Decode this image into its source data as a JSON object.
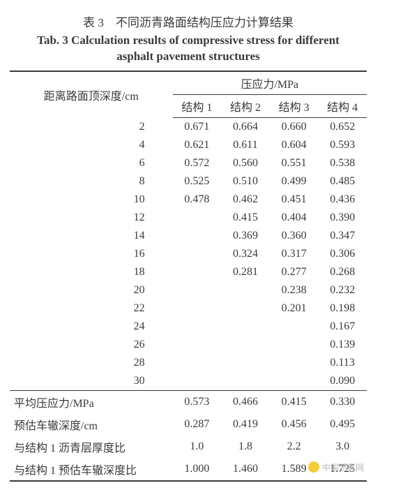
{
  "caption": {
    "cn": "表 3　不同沥青路面结构压应力计算结果",
    "en_line1": "Tab. 3 Calculation results of compressive stress for different",
    "en_line2": "asphalt pavement structures"
  },
  "headers": {
    "depth": "距离路面顶深度/cm",
    "stress_group": "压应力/MPa",
    "s1": "结构 1",
    "s2": "结构 2",
    "s3": "结构 3",
    "s4": "结构 4"
  },
  "rows": [
    {
      "depth": "2",
      "s1": "0.671",
      "s2": "0.664",
      "s3": "0.660",
      "s4": "0.652"
    },
    {
      "depth": "4",
      "s1": "0.621",
      "s2": "0.611",
      "s3": "0.604",
      "s4": "0.593"
    },
    {
      "depth": "6",
      "s1": "0.572",
      "s2": "0.560",
      "s3": "0.551",
      "s4": "0.538"
    },
    {
      "depth": "8",
      "s1": "0.525",
      "s2": "0.510",
      "s3": "0.499",
      "s4": "0.485"
    },
    {
      "depth": "10",
      "s1": "0.478",
      "s2": "0.462",
      "s3": "0.451",
      "s4": "0.436"
    },
    {
      "depth": "12",
      "s1": "",
      "s2": "0.415",
      "s3": "0.404",
      "s4": "0.390"
    },
    {
      "depth": "14",
      "s1": "",
      "s2": "0.369",
      "s3": "0.360",
      "s4": "0.347"
    },
    {
      "depth": "16",
      "s1": "",
      "s2": "0.324",
      "s3": "0.317",
      "s4": "0.306"
    },
    {
      "depth": "18",
      "s1": "",
      "s2": "0.281",
      "s3": "0.277",
      "s4": "0.268"
    },
    {
      "depth": "20",
      "s1": "",
      "s2": "",
      "s3": "0.238",
      "s4": "0.232"
    },
    {
      "depth": "22",
      "s1": "",
      "s2": "",
      "s3": "0.201",
      "s4": "0.198"
    },
    {
      "depth": "24",
      "s1": "",
      "s2": "",
      "s3": "",
      "s4": "0.167"
    },
    {
      "depth": "26",
      "s1": "",
      "s2": "",
      "s3": "",
      "s4": "0.139"
    },
    {
      "depth": "28",
      "s1": "",
      "s2": "",
      "s3": "",
      "s4": "0.113"
    },
    {
      "depth": "30",
      "s1": "",
      "s2": "",
      "s3": "",
      "s4": "0.090"
    }
  ],
  "summary": [
    {
      "label": "平均压应力/MPa",
      "s1": "0.573",
      "s2": "0.466",
      "s3": "0.415",
      "s4": "0.330"
    },
    {
      "label": "预估车辙深度/cm",
      "s1": "0.287",
      "s2": "0.419",
      "s3": "0.456",
      "s4": "0.495"
    },
    {
      "label": "与结构 1 沥青层厚度比",
      "s1": "1.0",
      "s2": "1.8",
      "s3": "2.2",
      "s4": "3.0"
    },
    {
      "label": "与结构 1 预估车辙深度比",
      "s1": "1.000",
      "s2": "1.460",
      "s3": "1.589",
      "s4": "1.725"
    }
  ],
  "watermark": {
    "text": "中国沥青网"
  },
  "style": {
    "table_type": "table",
    "border_color": "#3a3a3a",
    "text_color": "#3a3a3a",
    "background_color": "#ffffff",
    "caption_cn_fontsize": 17,
    "caption_en_fontsize": 17,
    "caption_en_weight": "bold",
    "body_fontsize": 16,
    "top_border_width": 2,
    "inner_border_width": 1,
    "bottom_border_width": 2,
    "num_columns": 5
  }
}
